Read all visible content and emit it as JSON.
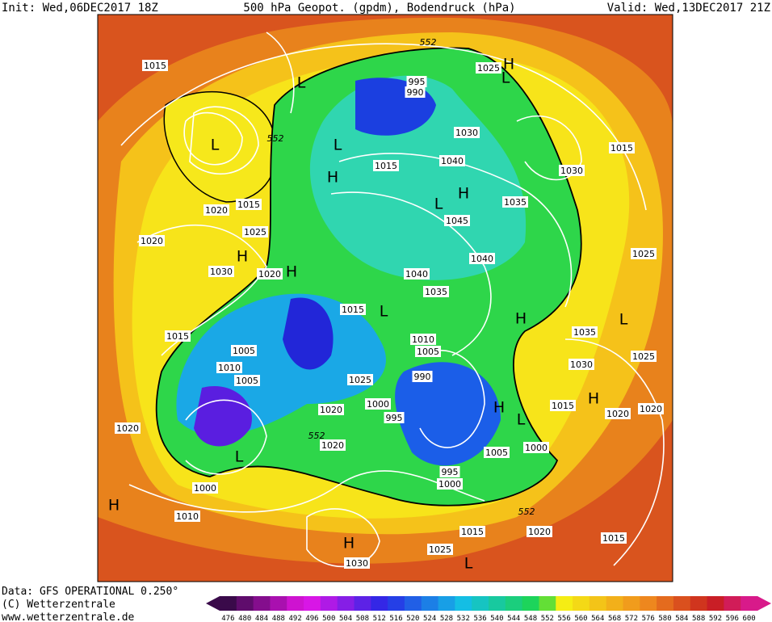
{
  "header": {
    "init": "Init: Wed,06DEC2017 18Z",
    "title": "500 hPa Geopot. (gpdm), Bodendruck (hPa)",
    "valid": "Valid: Wed,13DEC2017 21Z"
  },
  "footer": {
    "data": "Data: GFS OPERATIONAL 0.250°",
    "copyright": "(C) Wetterzentrale",
    "url": "www.wetterzentrale.de"
  },
  "legend": {
    "labels": [
      "476",
      "480",
      "484",
      "488",
      "492",
      "496",
      "500",
      "504",
      "508",
      "512",
      "516",
      "520",
      "524",
      "528",
      "532",
      "536",
      "540",
      "544",
      "548",
      "552",
      "556",
      "560",
      "564",
      "568",
      "572",
      "576",
      "580",
      "584",
      "588",
      "592",
      "596",
      "600"
    ]
  },
  "map_labels": [
    "1015",
    "L",
    "552",
    "1025",
    "H",
    "L",
    "995",
    "990",
    "552",
    "L",
    "L",
    "1030",
    "1015",
    "1030",
    "1040",
    "1015",
    "H",
    "H",
    "L",
    "1035",
    "1045",
    "1020",
    "1015",
    "1025",
    "1020",
    "H",
    "1030",
    "1020",
    "H",
    "1040",
    "1040",
    "1035",
    "1025",
    "1015",
    "L",
    "H",
    "1035",
    "L",
    "1015",
    "1005",
    "1010",
    "1005",
    "1025",
    "1030",
    "1010",
    "1005",
    "990",
    "1025",
    "1000",
    "995",
    "1020",
    "H",
    "1015",
    "H",
    "1020",
    "1020",
    "L",
    "1020",
    "552",
    "1020",
    "1005",
    "1000",
    "L",
    "995",
    "1000",
    "1000",
    "H",
    "1010",
    "552",
    "1015",
    "1020",
    "1015",
    "H",
    "1025",
    "L",
    "1030"
  ]
}
